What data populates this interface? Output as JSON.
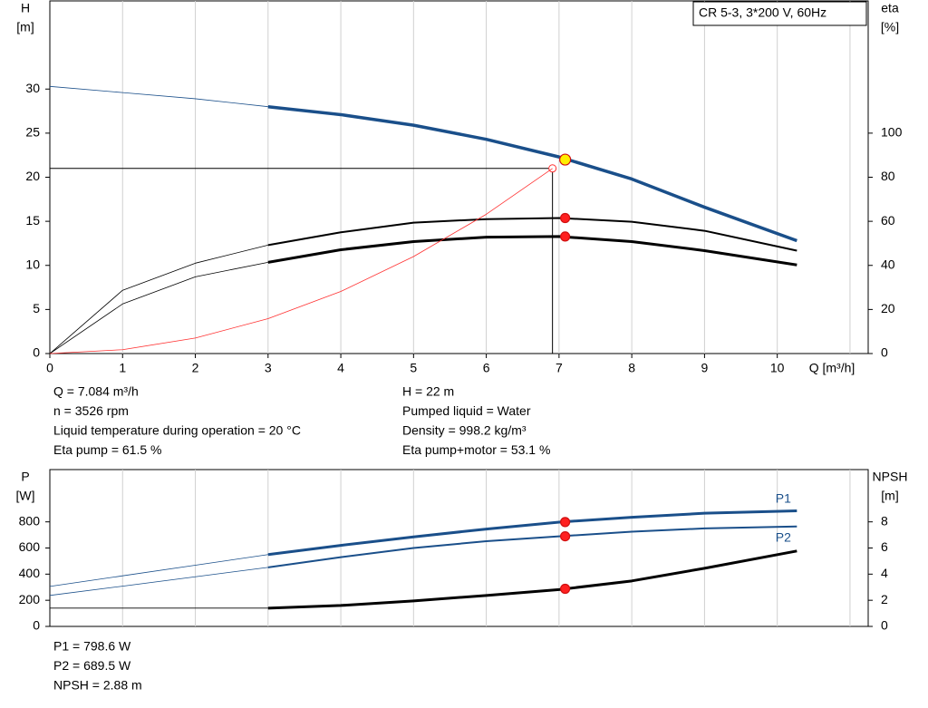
{
  "chart_data": [
    {
      "type": "line",
      "title": "CR 5-3, 3*200 V, 60Hz",
      "y_label": "H",
      "y_unit": "[m]",
      "y2_label": "eta",
      "y2_unit": "[%]",
      "x_label": "Q [m³/h]",
      "xlim": [
        0,
        11.25
      ],
      "xticks": [
        0,
        1,
        2,
        3,
        4,
        5,
        6,
        7,
        8,
        9,
        10
      ],
      "xgrid": [
        1,
        2,
        3,
        4,
        5,
        6,
        7,
        8,
        9,
        10,
        11
      ],
      "ylim": [
        0,
        40
      ],
      "yticks": [
        0,
        5,
        10,
        15,
        20,
        25,
        30
      ],
      "y2lim": [
        0,
        160
      ],
      "y2ticks": [
        0,
        20,
        40,
        60,
        80,
        100
      ],
      "series": [
        {
          "x": [
            0,
            1,
            2,
            3,
            4,
            5,
            6,
            7,
            8,
            9,
            10.27
          ],
          "values": [
            30.3,
            29.6,
            28.9,
            28,
            27.1,
            25.9,
            24.3,
            22.3,
            19.8,
            16.6,
            12.8
          ],
          "color": "#1a4f8a",
          "width": 3.5,
          "axis": "y",
          "extrapolated_to": 3,
          "marker": {
            "x": 7.084,
            "value": 22,
            "color": "#ffee00"
          }
        },
        {
          "x": [
            0,
            1,
            2,
            3,
            4,
            5,
            6,
            7,
            8,
            9,
            10.27
          ],
          "values": [
            0,
            28.7,
            41,
            49.2,
            55,
            59.4,
            61,
            61.5,
            59.8,
            55.7,
            46.7
          ],
          "color": "#000000",
          "width": 2,
          "axis": "y2",
          "extrapolated_to": 3,
          "marker": {
            "x": 7.084,
            "value": 61.5,
            "color": "#ff2020"
          }
        },
        {
          "x": [
            0,
            1,
            2,
            3,
            4,
            5,
            6,
            7,
            8,
            9,
            10.27
          ],
          "values": [
            0,
            22.5,
            34.8,
            41.4,
            47.1,
            50.8,
            52.8,
            53.1,
            50.8,
            46.7,
            40.2
          ],
          "color": "#000000",
          "width": 3,
          "axis": "y2",
          "extrapolated_to": 3,
          "marker": {
            "x": 7.084,
            "value": 53.1,
            "color": "#ff2020"
          }
        },
        {
          "x": [
            0,
            1,
            2,
            3,
            4,
            5,
            6,
            6.91
          ],
          "values": [
            0,
            0.44,
            1.76,
            3.96,
            7.04,
            11,
            15.8,
            21
          ],
          "color": "#ff3030",
          "width": 0.8,
          "axis": "y"
        }
      ],
      "crosshair": {
        "x": 6.91,
        "value": 21
      },
      "info_left": [
        "Q = 7.084 m³/h",
        "n = 3526 rpm",
        "Liquid temperature during operation = 20 °C",
        "Eta pump = 61.5 %"
      ],
      "info_right": [
        "H = 22 m",
        "Pumped liquid = Water",
        "Density = 998.2 kg/m³",
        "Eta pump+motor = 53.1 %"
      ]
    },
    {
      "type": "line",
      "y_label": "P",
      "y_unit": "[W]",
      "y2_label": "NPSH",
      "y2_unit": "[m]",
      "xlim": [
        0,
        11.25
      ],
      "xgrid": [
        1,
        2,
        3,
        4,
        5,
        6,
        7,
        8,
        9,
        10,
        11
      ],
      "ylim": [
        0,
        1200
      ],
      "yticks": [
        0,
        200,
        400,
        600,
        800
      ],
      "y2lim": [
        0,
        12
      ],
      "y2ticks": [
        0,
        2,
        4,
        6,
        8
      ],
      "series": [
        {
          "name": "P1",
          "label_side": "above",
          "x": [
            0,
            1,
            2,
            3,
            4,
            5,
            6,
            7,
            8,
            9,
            10.27
          ],
          "values": [
            306,
            387,
            468,
            550,
            620,
            685,
            745,
            798,
            835,
            866,
            884
          ],
          "color": "#1a4f8a",
          "width": 3,
          "axis": "y",
          "extrapolated_to": 3,
          "marker": {
            "x": 7.084,
            "value": 798.6,
            "color": "#ff2020"
          }
        },
        {
          "name": "P2",
          "label_side": "below",
          "x": [
            0,
            1,
            2,
            3,
            4,
            5,
            6,
            7,
            8,
            9,
            10.27
          ],
          "values": [
            237,
            308,
            380,
            452,
            530,
            600,
            652,
            689,
            725,
            750,
            765
          ],
          "color": "#1a4f8a",
          "width": 2,
          "axis": "y",
          "extrapolated_to": 3,
          "marker": {
            "x": 7.084,
            "value": 689.5,
            "color": "#ff2020"
          }
        },
        {
          "x": [
            0,
            3,
            4,
            5,
            6,
            7,
            8,
            9,
            10.27
          ],
          "values": [
            1.4,
            1.4,
            1.6,
            1.95,
            2.37,
            2.82,
            3.48,
            4.45,
            5.77
          ],
          "color": "#000000",
          "width": 3,
          "axis": "y2",
          "extrapolated_to": 3,
          "marker": {
            "x": 7.084,
            "value": 2.88,
            "color": "#ff2020"
          }
        }
      ],
      "info_left": [
        "P1 = 798.6 W",
        "P2 = 689.5 W",
        "NPSH = 2.88 m"
      ]
    }
  ]
}
